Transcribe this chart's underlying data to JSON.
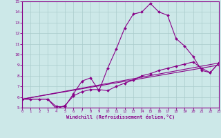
{
  "bg_color": "#cce8e8",
  "line_color": "#880088",
  "marker_color": "#880088",
  "grid_color": "#aacccc",
  "xlabel": "Windchill (Refroidissement éolien,°C)",
  "ylim": [
    5,
    15
  ],
  "xlim": [
    0,
    23
  ],
  "yticks": [
    5,
    6,
    7,
    8,
    9,
    10,
    11,
    12,
    13,
    14,
    15
  ],
  "xticks": [
    0,
    1,
    2,
    3,
    4,
    5,
    6,
    7,
    8,
    9,
    10,
    11,
    12,
    13,
    14,
    15,
    16,
    17,
    18,
    19,
    20,
    21,
    22,
    23
  ],
  "series1": [
    [
      0,
      5.8
    ],
    [
      1,
      5.8
    ],
    [
      2,
      5.8
    ],
    [
      3,
      5.8
    ],
    [
      4,
      5.1
    ],
    [
      5,
      5.1
    ],
    [
      6,
      6.3
    ],
    [
      7,
      7.5
    ],
    [
      8,
      7.8
    ],
    [
      9,
      6.6
    ],
    [
      10,
      8.7
    ],
    [
      11,
      10.5
    ],
    [
      12,
      12.5
    ],
    [
      13,
      13.8
    ],
    [
      14,
      14.0
    ],
    [
      15,
      14.8
    ],
    [
      16,
      14.0
    ],
    [
      17,
      13.7
    ],
    [
      18,
      11.5
    ],
    [
      19,
      10.8
    ],
    [
      20,
      9.8
    ],
    [
      21,
      8.5
    ],
    [
      22,
      8.3
    ],
    [
      23,
      9.2
    ]
  ],
  "series2": [
    [
      0,
      5.8
    ],
    [
      3,
      5.8
    ],
    [
      4,
      4.9
    ],
    [
      5,
      5.2
    ],
    [
      6,
      6.1
    ],
    [
      7,
      6.5
    ],
    [
      8,
      6.7
    ],
    [
      9,
      6.7
    ],
    [
      10,
      6.6
    ],
    [
      11,
      7.0
    ],
    [
      12,
      7.3
    ],
    [
      13,
      7.6
    ],
    [
      14,
      8.0
    ],
    [
      15,
      8.2
    ],
    [
      16,
      8.5
    ],
    [
      17,
      8.7
    ],
    [
      18,
      8.9
    ],
    [
      19,
      9.1
    ],
    [
      20,
      9.3
    ],
    [
      21,
      8.7
    ],
    [
      22,
      8.3
    ],
    [
      23,
      9.2
    ]
  ],
  "series3": [
    [
      0,
      5.8
    ],
    [
      23,
      9.2
    ]
  ],
  "series4": [
    [
      0,
      5.8
    ],
    [
      23,
      9.0
    ]
  ]
}
